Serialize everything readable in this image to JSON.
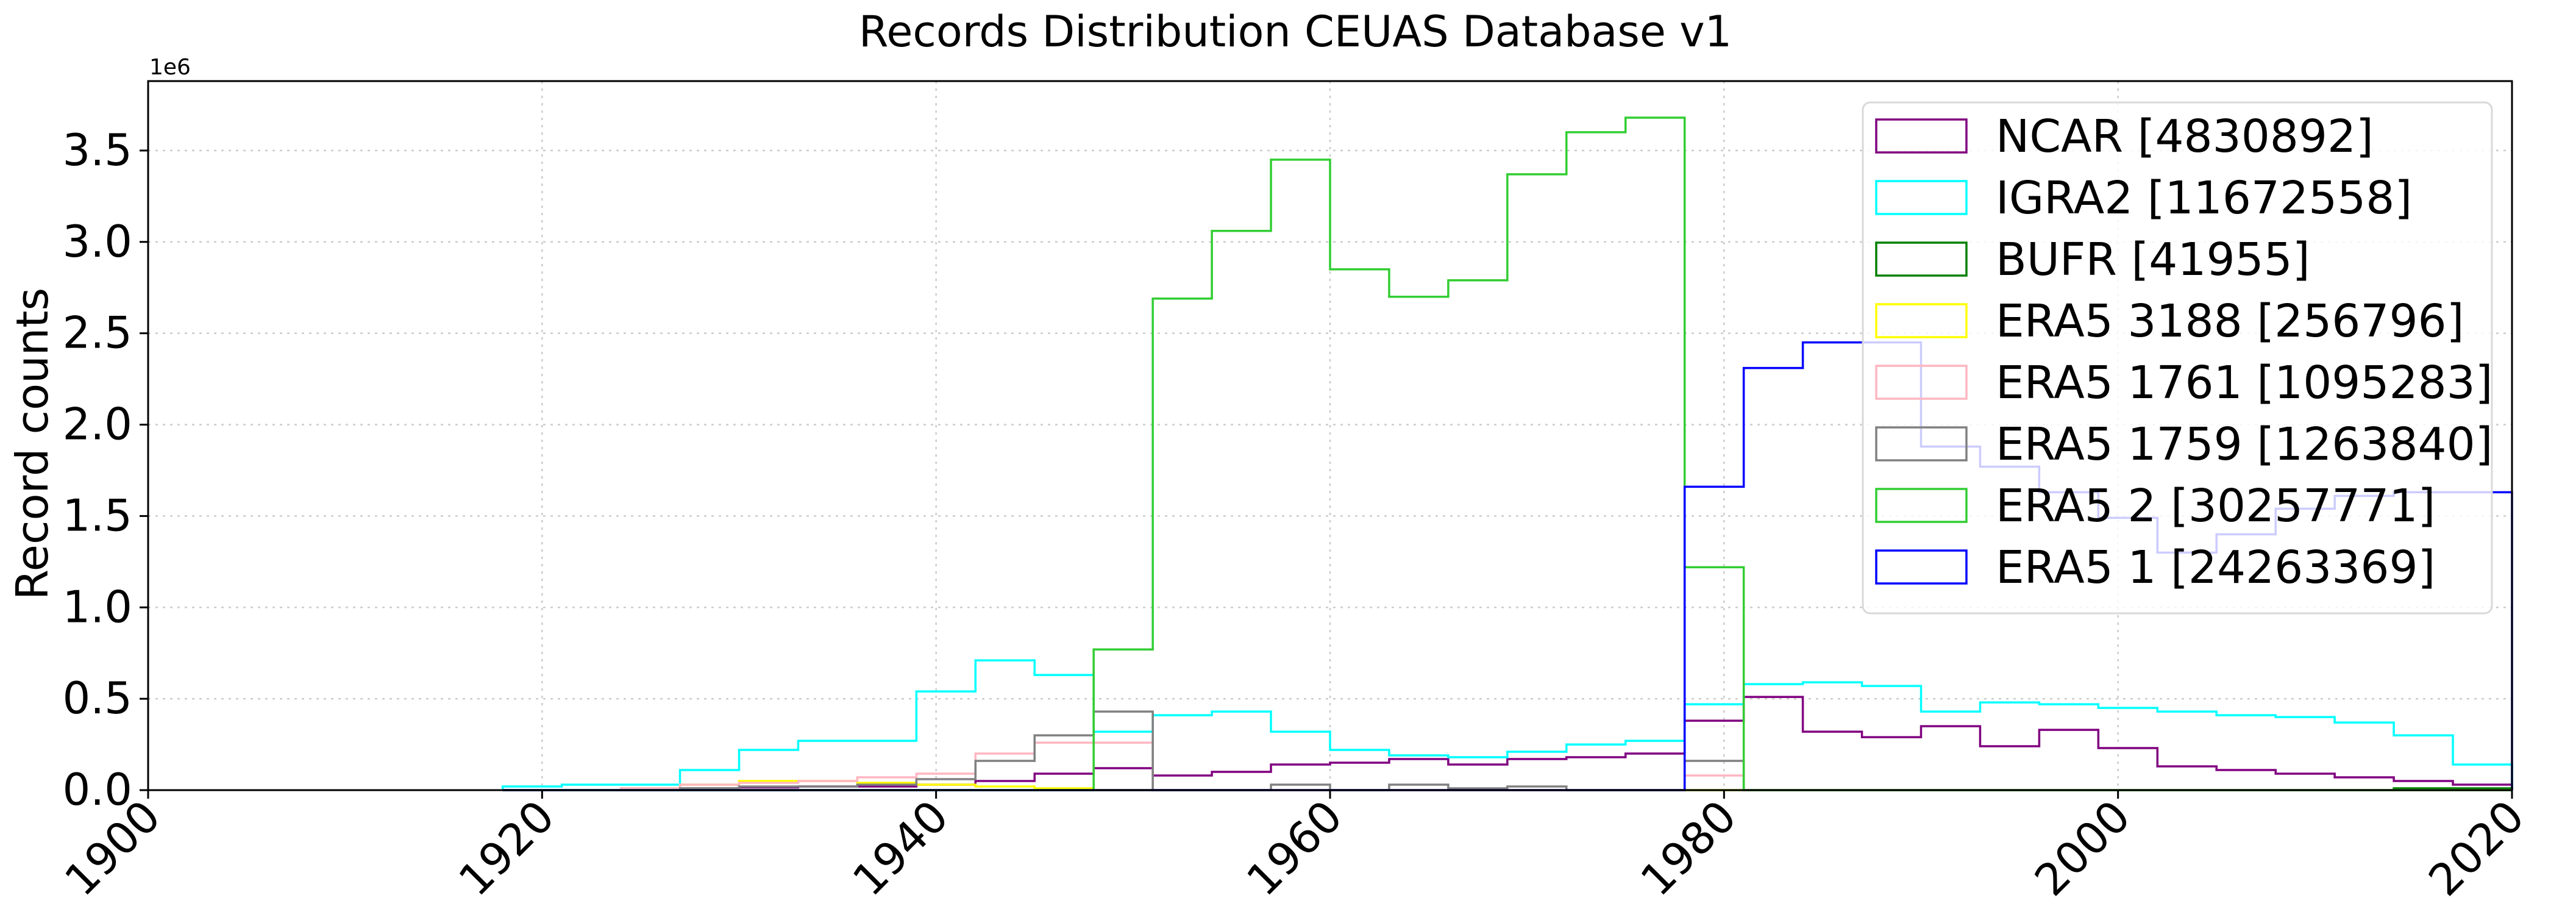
{
  "chart_data": {
    "type": "histogram",
    "title": "Records Distribution CEUAS Database v1",
    "xlabel": "",
    "ylabel": "Record counts",
    "y_offset_text": "1e6",
    "xlim": [
      1900,
      2020
    ],
    "ylim": [
      0,
      3.88
    ],
    "x_ticks": [
      1900,
      1920,
      1940,
      1960,
      1980,
      2000,
      2020
    ],
    "y_ticks": [
      0.0,
      0.5,
      1.0,
      1.5,
      2.0,
      2.5,
      3.0,
      3.5
    ],
    "y_tick_labels": [
      "0.0",
      "0.5",
      "1.0",
      "1.5",
      "2.0",
      "2.5",
      "3.0",
      "3.5"
    ],
    "grid": true,
    "legend_position": "top-right",
    "bin_edges": [
      1918,
      1921,
      1924,
      1927,
      1930,
      1933,
      1936,
      1939,
      1942,
      1945,
      1948,
      1951,
      1954,
      1957,
      1960,
      1963,
      1966,
      1969,
      1972,
      1975,
      1978,
      1981,
      1984,
      1987,
      1990,
      1993,
      1996,
      1999,
      2002,
      2005,
      2008,
      2011,
      2014,
      2017,
      2020
    ],
    "series": [
      {
        "name": "NCAR  [4830892]",
        "color": "#800080",
        "values": [
          0.0,
          0.0,
          0.005,
          0.01,
          0.015,
          0.02,
          0.02,
          0.03,
          0.05,
          0.09,
          0.12,
          0.08,
          0.1,
          0.14,
          0.15,
          0.17,
          0.14,
          0.17,
          0.18,
          0.2,
          0.38,
          0.51,
          0.32,
          0.29,
          0.35,
          0.24,
          0.33,
          0.23,
          0.13,
          0.11,
          0.09,
          0.07,
          0.05,
          0.03
        ]
      },
      {
        "name": "IGRA2  [11672558]",
        "color": "#00ffff",
        "values": [
          0.02,
          0.03,
          0.03,
          0.11,
          0.22,
          0.27,
          0.27,
          0.54,
          0.71,
          0.63,
          0.32,
          0.41,
          0.43,
          0.32,
          0.22,
          0.19,
          0.18,
          0.21,
          0.25,
          0.27,
          0.47,
          0.58,
          0.59,
          0.57,
          0.43,
          0.48,
          0.47,
          0.45,
          0.43,
          0.41,
          0.4,
          0.37,
          0.3,
          0.14
        ]
      },
      {
        "name": "BUFR  [41955]",
        "color": "#008000",
        "values": [
          0,
          0,
          0,
          0,
          0,
          0,
          0,
          0,
          0,
          0,
          0,
          0,
          0,
          0,
          0,
          0,
          0,
          0,
          0,
          0,
          0,
          0,
          0,
          0,
          0,
          0,
          0,
          0,
          0,
          0,
          0,
          0,
          0.01,
          0.01
        ]
      },
      {
        "name": "ERA5 3188  [256796]",
        "color": "#ffff00",
        "values": [
          0.0,
          0.0,
          0.01,
          0.03,
          0.05,
          0.05,
          0.04,
          0.03,
          0.02,
          0.01,
          0.0,
          0,
          0,
          0,
          0,
          0,
          0,
          0,
          0,
          0,
          0,
          0,
          0,
          0,
          0,
          0,
          0,
          0,
          0,
          0,
          0,
          0,
          0,
          0
        ]
      },
      {
        "name": "ERA5 1761  [1095283]",
        "color": "#ffb6c1",
        "values": [
          0.0,
          0.0,
          0.01,
          0.03,
          0.04,
          0.05,
          0.07,
          0.09,
          0.2,
          0.26,
          0.26,
          0.0,
          0.0,
          0.0,
          0.0,
          0.0,
          0.0,
          0.0,
          0.0,
          0.0,
          0.08,
          0,
          0,
          0,
          0,
          0,
          0,
          0,
          0,
          0,
          0,
          0,
          0,
          0
        ]
      },
      {
        "name": "ERA5 1759  [1263840]",
        "color": "#808080",
        "values": [
          0.0,
          0.0,
          0.0,
          0.01,
          0.02,
          0.02,
          0.03,
          0.06,
          0.16,
          0.3,
          0.43,
          0.0,
          0.0,
          0.03,
          0.0,
          0.03,
          0.01,
          0.02,
          0.0,
          0.0,
          0.16,
          0,
          0,
          0,
          0,
          0,
          0,
          0,
          0,
          0,
          0,
          0,
          0,
          0
        ]
      },
      {
        "name": "ERA5 2  [30257771]",
        "color": "#32cd32",
        "values": [
          0,
          0,
          0,
          0,
          0,
          0,
          0,
          0,
          0,
          0,
          0.77,
          2.69,
          3.06,
          3.45,
          2.85,
          2.7,
          2.79,
          3.37,
          3.6,
          3.68,
          1.22,
          0,
          0,
          0,
          0,
          0,
          0,
          0,
          0,
          0,
          0,
          0,
          0,
          0
        ]
      },
      {
        "name": "ERA5 1  [24263369]",
        "color": "#0000ff",
        "values": [
          0,
          0,
          0,
          0,
          0,
          0,
          0,
          0,
          0,
          0,
          0,
          0,
          0,
          0,
          0,
          0,
          0,
          0,
          0,
          0,
          1.66,
          2.31,
          2.45,
          2.45,
          1.88,
          1.77,
          1.63,
          1.49,
          1.3,
          1.4,
          1.54,
          1.61,
          1.63,
          1.63
        ]
      }
    ]
  }
}
